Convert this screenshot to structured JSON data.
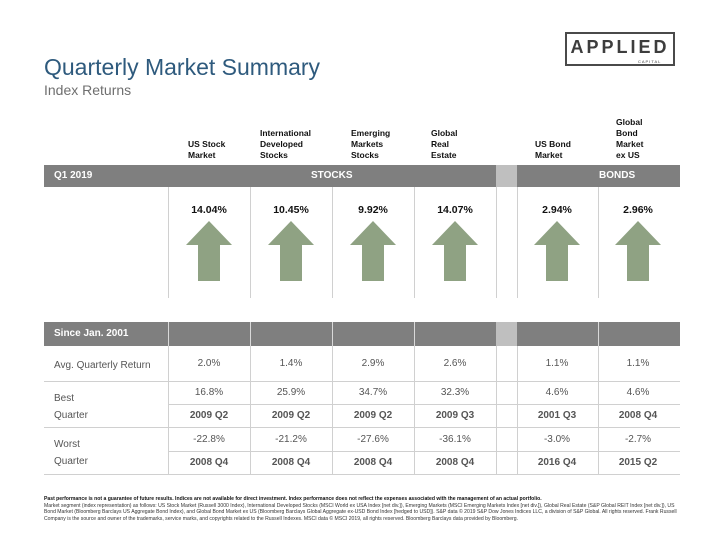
{
  "header": {
    "title": "Quarterly Market Summary",
    "subtitle": "Index Returns",
    "logo_text": "APPLIED",
    "logo_subtext": "CAPITAL"
  },
  "columns": [
    "US Stock\nMarket",
    "International\nDeveloped\nStocks",
    "Emerging\nMarkets\nStocks",
    "Global\nReal\nEstate",
    "US Bond\nMarket",
    "Global\nBond\nMarket\nex US"
  ],
  "quarter_band": {
    "label": "Q1 2019",
    "stocks": "STOCKS",
    "bonds": "BONDS"
  },
  "returns": [
    "14.04%",
    "10.45%",
    "9.92%",
    "14.07%",
    "2.94%",
    "2.96%"
  ],
  "arrow_color": "#8fa283",
  "since_band": {
    "label": "Since Jan. 2001"
  },
  "rows": {
    "avg": {
      "label": "Avg. Quarterly Return",
      "values": [
        "2.0%",
        "1.4%",
        "2.9%",
        "2.6%",
        "1.1%",
        "1.1%"
      ]
    },
    "best": {
      "label": "Best\nQuarter",
      "values": [
        "16.8%",
        "25.9%",
        "34.7%",
        "32.3%",
        "4.6%",
        "4.6%"
      ],
      "quarters": [
        "2009 Q2",
        "2009 Q2",
        "2009 Q2",
        "2009 Q3",
        "2001 Q3",
        "2008 Q4"
      ]
    },
    "worst": {
      "label": "Worst\nQuarter",
      "values": [
        "-22.8%",
        "-21.2%",
        "-27.6%",
        "-36.1%",
        "-3.0%",
        "-2.7%"
      ],
      "quarters": [
        "2008 Q4",
        "2008 Q4",
        "2008 Q4",
        "2008 Q4",
        "2016 Q4",
        "2015 Q2"
      ]
    }
  },
  "footnote": {
    "bold": "Past performance is not a guarantee of future results. Indices are not available for direct investment. Index performance does not reflect the expenses associated with the management of an actual portfolio.",
    "text": "Market segment (index representation) as follows: US Stock Market (Russell 3000 Index), International Developed Stocks (MSCI World ex USA Index [net div.]), Emerging Markets (MSCI Emerging Markets Index [net div.]), Global Real Estate (S&P Global REIT Index [net div.]), US Bond Market (Bloomberg Barclays US Aggregate Bond Index), and Global Bond Market ex US (Bloomberg Barclays Global Aggregate ex-USD Bond Index [hedged to USD]). S&P data © 2019 S&P Dow Jones Indices LLC, a division of S&P Global. All rights reserved. Frank Russell Company is the source and owner of the trademarks, service marks, and copyrights related to the Russell Indexes. MSCI data © MSCI 2019, all rights reserved. Bloomberg Barclays data provided by Bloomberg."
  }
}
